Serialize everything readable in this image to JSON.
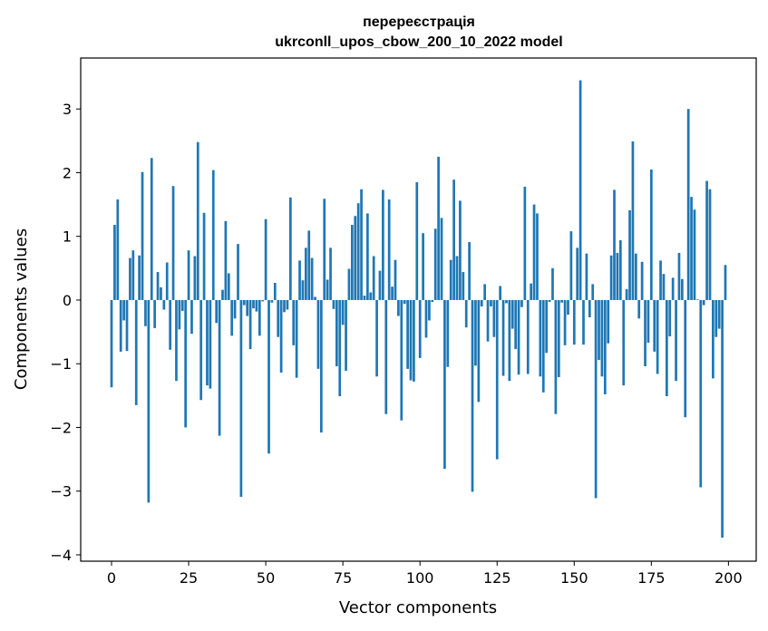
{
  "chart_data": {
    "type": "bar",
    "title": "перереєстрація",
    "subtitle": "ukrconll_upos_cbow_200_10_2022 model",
    "xlabel": "Vector components",
    "ylabel": "Components values",
    "xlim": [
      -10,
      209
    ],
    "ylim": [
      -4.1,
      3.8
    ],
    "xticks": [
      0,
      25,
      50,
      75,
      100,
      125,
      150,
      175,
      200
    ],
    "yticks": [
      -4,
      -3,
      -2,
      -1,
      0,
      1,
      2,
      3
    ],
    "grid": false,
    "bar_color": "#1f77b4",
    "x": [
      0,
      1,
      2,
      3,
      4,
      5,
      6,
      7,
      8,
      9,
      10,
      11,
      12,
      13,
      14,
      15,
      16,
      17,
      18,
      19,
      20,
      21,
      22,
      23,
      24,
      25,
      26,
      27,
      28,
      29,
      30,
      31,
      32,
      33,
      34,
      35,
      36,
      37,
      38,
      39,
      40,
      41,
      42,
      43,
      44,
      45,
      46,
      47,
      48,
      49,
      50,
      51,
      52,
      53,
      54,
      55,
      56,
      57,
      58,
      59,
      60,
      61,
      62,
      63,
      64,
      65,
      66,
      67,
      68,
      69,
      70,
      71,
      72,
      73,
      74,
      75,
      76,
      77,
      78,
      79,
      80,
      81,
      82,
      83,
      84,
      85,
      86,
      87,
      88,
      89,
      90,
      91,
      92,
      93,
      94,
      95,
      96,
      97,
      98,
      99,
      100,
      101,
      102,
      103,
      104,
      105,
      106,
      107,
      108,
      109,
      110,
      111,
      112,
      113,
      114,
      115,
      116,
      117,
      118,
      119,
      120,
      121,
      122,
      123,
      124,
      125,
      126,
      127,
      128,
      129,
      130,
      131,
      132,
      133,
      134,
      135,
      136,
      137,
      138,
      139,
      140,
      141,
      142,
      143,
      144,
      145,
      146,
      147,
      148,
      149,
      150,
      151,
      152,
      153,
      154,
      155,
      156,
      157,
      158,
      159,
      160,
      161,
      162,
      163,
      164,
      165,
      166,
      167,
      168,
      169,
      170,
      171,
      172,
      173,
      174,
      175,
      176,
      177,
      178,
      179,
      180,
      181,
      182,
      183,
      184,
      185,
      186,
      187,
      188,
      189,
      190,
      191,
      192,
      193,
      194,
      195,
      196,
      197,
      198,
      199
    ],
    "values": [
      -1.37,
      1.18,
      1.58,
      -0.81,
      -0.32,
      -0.8,
      0.66,
      0.78,
      -1.65,
      0.7,
      2.01,
      -0.41,
      -3.18,
      2.23,
      -0.44,
      0.44,
      0.2,
      -0.15,
      0.59,
      -0.78,
      1.79,
      -1.27,
      -0.46,
      -0.17,
      -2.0,
      0.78,
      -0.53,
      0.69,
      2.48,
      -1.57,
      1.37,
      -1.34,
      -1.39,
      2.04,
      -0.36,
      -2.13,
      0.16,
      1.24,
      0.42,
      -0.56,
      -0.29,
      0.88,
      -3.09,
      -0.08,
      -0.25,
      -0.77,
      -0.13,
      -0.18,
      -0.56,
      -0.02,
      1.27,
      -2.41,
      -0.04,
      0.27,
      -0.58,
      -1.14,
      -0.19,
      -0.15,
      1.61,
      -0.71,
      -1.22,
      0.62,
      0.31,
      0.82,
      1.09,
      0.66,
      0.05,
      -1.08,
      -2.08,
      1.59,
      0.32,
      0.82,
      -0.14,
      -1.04,
      -1.51,
      -0.39,
      -1.11,
      0.49,
      1.18,
      1.32,
      1.52,
      1.74,
      0.07,
      1.36,
      0.12,
      0.69,
      -1.2,
      0.46,
      1.73,
      -1.79,
      1.58,
      0.21,
      0.63,
      -0.25,
      -1.89,
      -0.06,
      -1.08,
      -1.26,
      -1.28,
      1.85,
      -0.91,
      1.05,
      -0.59,
      -0.32,
      -0.03,
      1.12,
      2.25,
      1.29,
      -2.65,
      -1.05,
      0.63,
      1.89,
      0.69,
      1.56,
      0.44,
      -0.43,
      0.91,
      -3.01,
      -1.03,
      -1.6,
      -0.1,
      0.25,
      -0.65,
      -0.1,
      -0.58,
      -2.5,
      0.22,
      -1.19,
      -0.05,
      -1.27,
      -0.45,
      -0.77,
      -1.17,
      -0.11,
      1.78,
      -1.16,
      0.26,
      1.5,
      1.36,
      -1.2,
      -1.45,
      -0.83,
      -0.03,
      0.5,
      -1.79,
      -1.21,
      -0.04,
      -0.71,
      -0.23,
      1.08,
      -0.7,
      0.82,
      3.45,
      -0.7,
      0.73,
      -0.27,
      0.25,
      -3.11,
      -0.94,
      -1.2,
      -1.48,
      -0.68,
      0.7,
      1.73,
      0.74,
      0.94,
      -1.34,
      0.17,
      1.41,
      2.49,
      0.73,
      -0.29,
      0.6,
      -1.04,
      -0.67,
      2.05,
      -0.81,
      -1.16,
      0.62,
      0.41,
      -1.51,
      -0.57,
      0.35,
      -1.27,
      0.74,
      0.33,
      -1.84,
      3.0,
      1.62,
      1.42,
      0.01,
      -2.94,
      -0.08,
      1.87,
      1.74,
      -1.23,
      -0.58,
      -0.45,
      -3.73,
      0.55
    ]
  }
}
